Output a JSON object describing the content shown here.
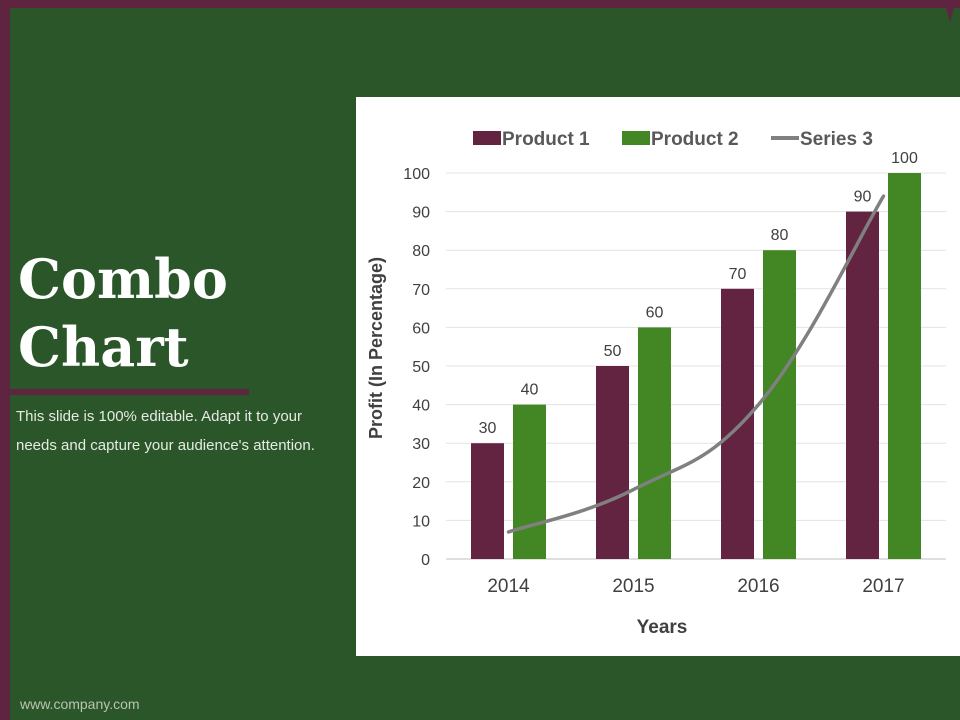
{
  "slide": {
    "title_lines": [
      "Combo",
      "Chart"
    ],
    "subtitle": "This slide is 100% editable. Adapt it to your needs and capture your audience's attention.",
    "footer": "www.company.com"
  },
  "colors": {
    "background": "#2b5629",
    "accent": "#5f2540",
    "product1": "#622440",
    "product2": "#428724",
    "series3": "#808080"
  },
  "chart_data": {
    "type": "bar",
    "categories": [
      "2014",
      "2015",
      "2016",
      "2017"
    ],
    "series": [
      {
        "name": "Product 1",
        "type": "bar",
        "values": [
          30,
          50,
          70,
          90
        ],
        "data_labels": [
          "30",
          "50",
          "70",
          "90"
        ]
      },
      {
        "name": "Product 2",
        "type": "bar",
        "values": [
          40,
          60,
          80,
          100
        ],
        "data_labels": [
          "40",
          "60",
          "80",
          "100"
        ]
      },
      {
        "name": "Series 3",
        "type": "line",
        "values": [
          7,
          18,
          40,
          94
        ]
      }
    ],
    "xlabel": "Years",
    "ylabel": "Profit  (In Percentage)",
    "ylim": [
      0,
      100
    ],
    "yticks": [
      0,
      10,
      20,
      30,
      40,
      50,
      60,
      70,
      80,
      90,
      100
    ],
    "grid": true,
    "legend_position": "top"
  }
}
